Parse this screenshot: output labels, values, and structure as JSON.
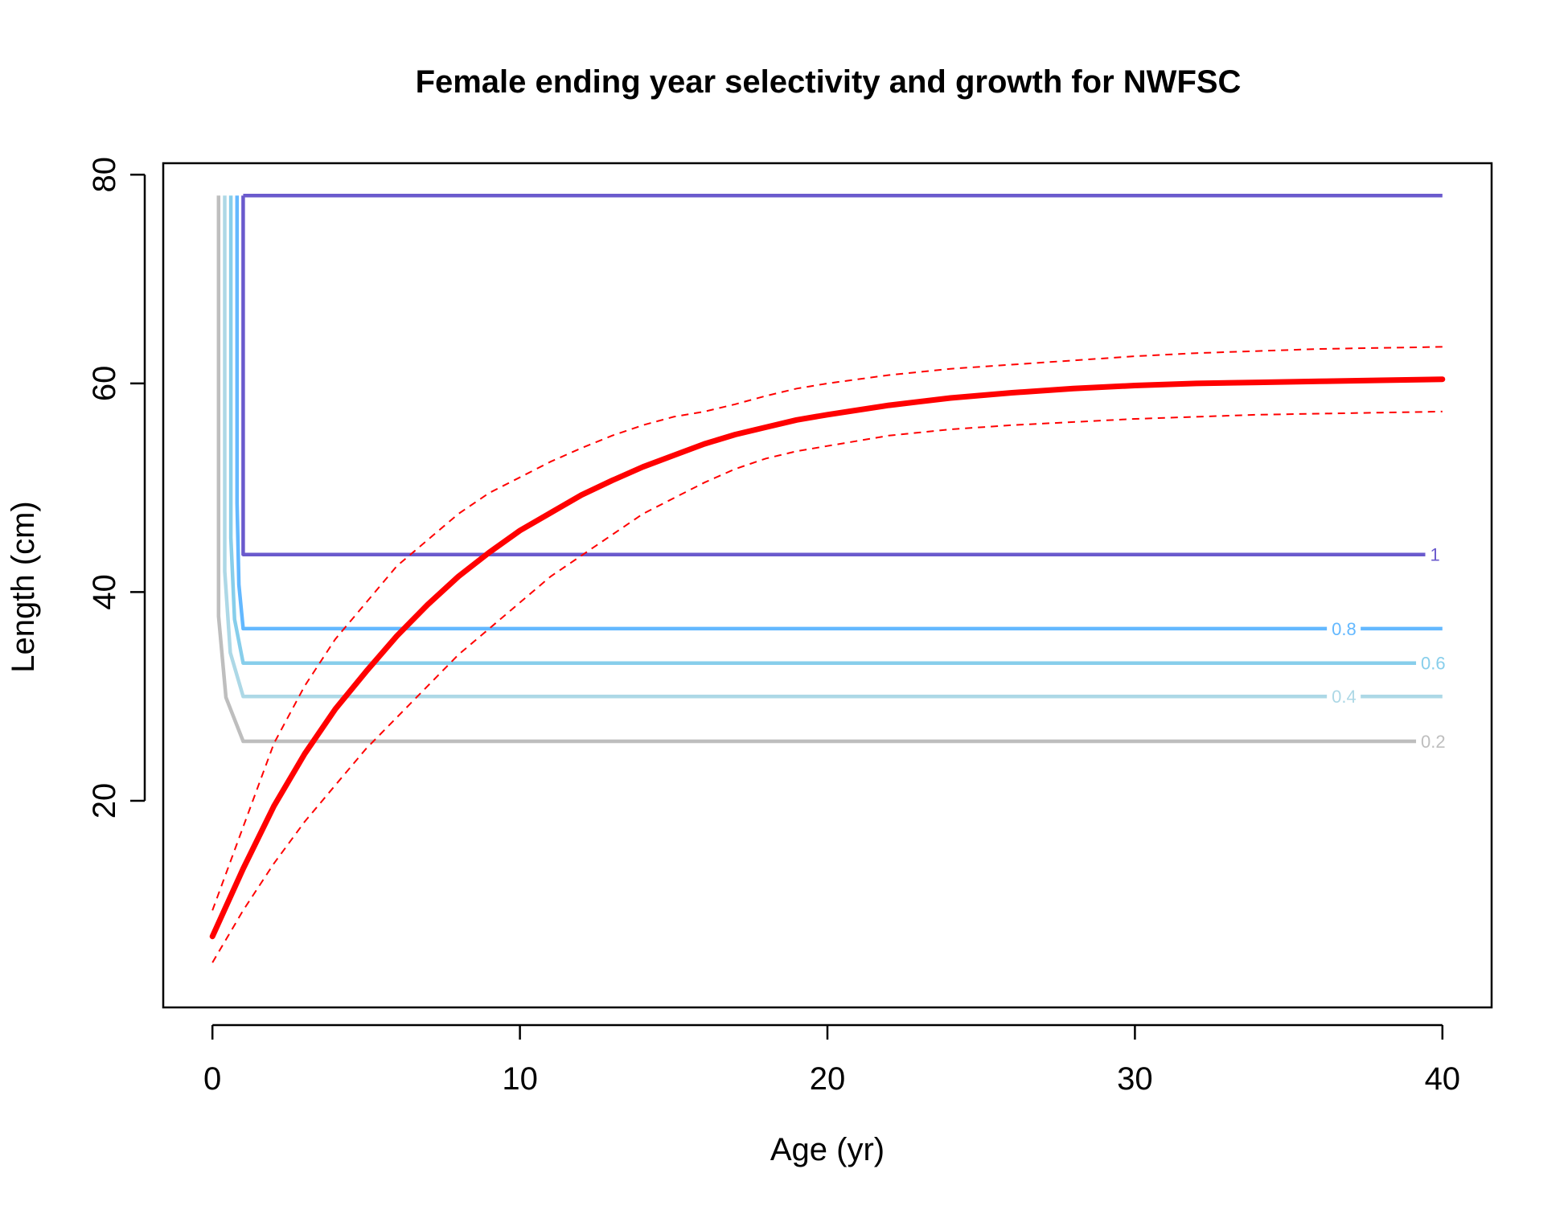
{
  "chart_data": {
    "type": "line",
    "title": "Female ending year selectivity and growth for NWFSC",
    "xlabel": "Age (yr)",
    "ylabel": "Length (cm)",
    "xlim": [
      -1.6,
      41.6
    ],
    "ylim": [
      0.2,
      81.1
    ],
    "x_ticks": [
      0,
      10,
      20,
      30,
      40
    ],
    "y_ticks": [
      20,
      40,
      60,
      80
    ],
    "grid": false,
    "contours": [
      {
        "label": "0.2",
        "level": 0.2,
        "color": "#BEBEBE",
        "length": 25.7
      },
      {
        "label": "0.4",
        "level": 0.4,
        "color": "#ADD8E6",
        "length": 30.0
      },
      {
        "label": "0.6",
        "level": 0.6,
        "color": "#87CEEB",
        "length": 33.2
      },
      {
        "label": "0.8",
        "level": 0.8,
        "color": "#63B8FF",
        "length": 36.5
      },
      {
        "label": "1",
        "level": 1.0,
        "color": "#6A5ACD",
        "length": 43.6
      }
    ],
    "contour_top": 78.0,
    "growth": {
      "color": "#FF0000",
      "ages": [
        0,
        1,
        2,
        3,
        4,
        5,
        6,
        7,
        8,
        9,
        10,
        11,
        12,
        13,
        14,
        15,
        16,
        17,
        18,
        19,
        20,
        22,
        24,
        26,
        28,
        30,
        32,
        34,
        36,
        38,
        40
      ],
      "mean": [
        7.0,
        13.5,
        19.5,
        24.5,
        28.8,
        32.4,
        35.8,
        38.8,
        41.5,
        43.8,
        45.9,
        47.6,
        49.3,
        50.7,
        52.0,
        53.1,
        54.2,
        55.1,
        55.8,
        56.5,
        57.0,
        57.9,
        58.6,
        59.1,
        59.5,
        59.8,
        60.0,
        60.1,
        60.2,
        60.3,
        60.4
      ],
      "upper": [
        9.5,
        17.5,
        25.5,
        31.0,
        35.5,
        39.0,
        42.5,
        45.0,
        47.5,
        49.5,
        51.0,
        52.5,
        53.8,
        55.0,
        56.0,
        56.8,
        57.3,
        58.0,
        58.8,
        59.5,
        60.0,
        60.8,
        61.4,
        61.8,
        62.2,
        62.6,
        62.9,
        63.1,
        63.3,
        63.4,
        63.5
      ],
      "lower": [
        4.5,
        9.5,
        14.0,
        18.0,
        21.5,
        25.0,
        28.0,
        31.0,
        34.0,
        36.5,
        39.0,
        41.5,
        43.5,
        45.5,
        47.5,
        49.0,
        50.5,
        51.8,
        52.8,
        53.5,
        54.0,
        55.0,
        55.6,
        56.0,
        56.3,
        56.6,
        56.8,
        57.0,
        57.1,
        57.2,
        57.3
      ]
    }
  }
}
